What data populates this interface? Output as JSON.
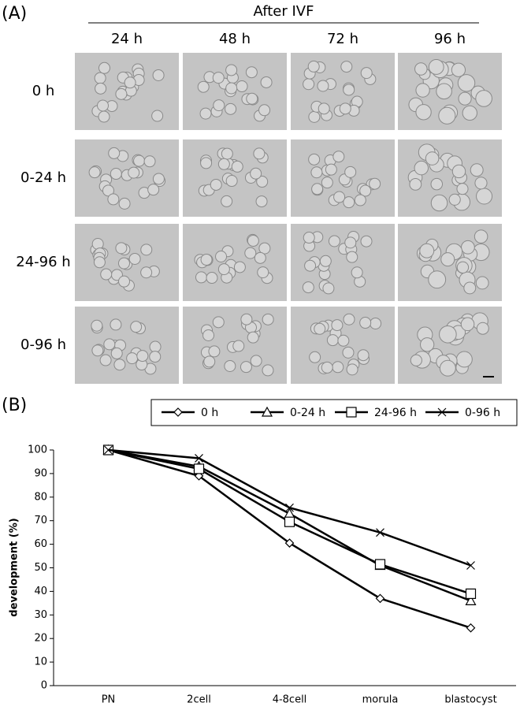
{
  "panel_a": {
    "label": "(A)",
    "header": "After IVF",
    "columns": [
      "24 h",
      "48 h",
      "72 h",
      "96 h"
    ],
    "rows": [
      "0 h",
      "0-24 h",
      "24-96 h",
      "0-96 h"
    ]
  },
  "chart_data": {
    "type": "line",
    "panel_label": "(B)",
    "ylabel": "development (%)",
    "categories": [
      "PN",
      "2cell",
      "4-8cell",
      "morula",
      "blastocyst"
    ],
    "series": [
      {
        "name": "0 h",
        "color": "#000000",
        "marker": "diamond",
        "values": [
          100,
          89,
          60.5,
          37,
          24.5
        ]
      },
      {
        "name": "0-24 h",
        "color": "#000000",
        "marker": "triangle",
        "values": [
          100,
          93,
          73,
          51,
          36
        ]
      },
      {
        "name": "24-96 h",
        "color": "#000000",
        "marker": "square",
        "values": [
          100,
          92,
          69.5,
          51.5,
          39
        ]
      },
      {
        "name": "0-96 h",
        "color": "#000000",
        "marker": "x",
        "values": [
          100,
          96.5,
          75.5,
          65,
          51
        ]
      }
    ],
    "ylim": [
      0,
      100
    ],
    "yticks": [
      0,
      10,
      20,
      30,
      40,
      50,
      60,
      70,
      80,
      90,
      100
    ],
    "legend": "top"
  }
}
